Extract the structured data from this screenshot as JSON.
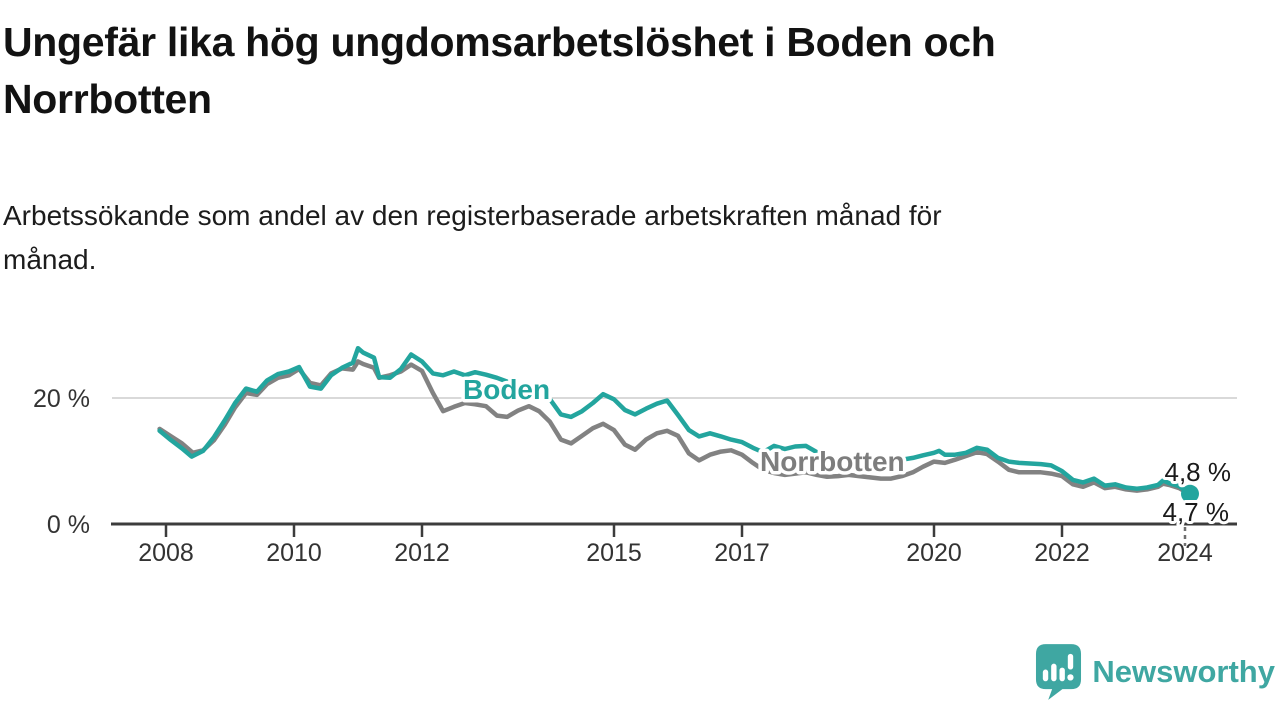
{
  "header": {
    "title": "Ungefär lika hög ungdomsarbetslöshet i Boden och\nNorrbotten",
    "subtitle": "Arbetssökande som andel av den registerbaserade arbetskraften månad för\nmånad."
  },
  "footer": {
    "brand": "Newsworthy",
    "logo_icon": "newsworthy-chart-bubble-icon",
    "brand_color": "#3fa7a2"
  },
  "chart_data": {
    "type": "line",
    "title": "Ungefär lika hög ungdomsarbetslöshet i Boden och Norrbotten",
    "subtitle": "Arbetssökande som andel av den registerbaserade arbetskraften månad för månad.",
    "unit": "%",
    "grid": "single-horizontal-gridline-at-20",
    "legend_position": "inline-labels-on-lines",
    "x_axis": {
      "range": [
        2007.5,
        2024.75
      ],
      "ticks": [
        {
          "year": 2008,
          "label": "2008"
        },
        {
          "year": 2010,
          "label": "2010"
        },
        {
          "year": 2012,
          "label": "2012"
        },
        {
          "year": 2015,
          "label": "2015"
        },
        {
          "year": 2017,
          "label": "2017"
        },
        {
          "year": 2020,
          "label": "2020"
        },
        {
          "year": 2022,
          "label": "2022"
        },
        {
          "year": 2024,
          "label": "2024",
          "dashed": true
        }
      ]
    },
    "y_axis": {
      "ylim": [
        0,
        30
      ],
      "ticks": [
        {
          "value": 20,
          "label": "20 %"
        },
        {
          "value": 0,
          "label": "0 %"
        }
      ]
    },
    "colors": {
      "boden": "#23a59e",
      "norrbotten": "#828282",
      "gridline": "#d9d9d9",
      "axis": "#3c3c3c",
      "tick_text": "#333333",
      "value_label_text": "#1a1a1a"
    },
    "series": [
      {
        "name": "Norrbotten",
        "color": "#828282",
        "end_value": 4.7,
        "end_label": "4,7 %",
        "points": [
          [
            2007.9,
            15.1
          ],
          [
            2008.08,
            13.9
          ],
          [
            2008.25,
            12.8
          ],
          [
            2008.42,
            11.3
          ],
          [
            2008.58,
            11.7
          ],
          [
            2008.75,
            13.3
          ],
          [
            2008.92,
            15.8
          ],
          [
            2009.08,
            18.5
          ],
          [
            2009.25,
            20.8
          ],
          [
            2009.42,
            20.5
          ],
          [
            2009.58,
            22.2
          ],
          [
            2009.75,
            23.2
          ],
          [
            2009.92,
            23.6
          ],
          [
            2010.08,
            24.6
          ],
          [
            2010.25,
            22.4
          ],
          [
            2010.42,
            22.0
          ],
          [
            2010.58,
            23.9
          ],
          [
            2010.75,
            24.7
          ],
          [
            2010.92,
            24.5
          ],
          [
            2011.0,
            25.8
          ],
          [
            2011.08,
            25.4
          ],
          [
            2011.25,
            24.8
          ],
          [
            2011.33,
            23.2
          ],
          [
            2011.5,
            23.6
          ],
          [
            2011.67,
            24.2
          ],
          [
            2011.83,
            25.3
          ],
          [
            2012.0,
            24.3
          ],
          [
            2012.17,
            20.8
          ],
          [
            2012.33,
            17.9
          ],
          [
            2012.5,
            18.6
          ],
          [
            2012.67,
            19.2
          ],
          [
            2012.83,
            19.0
          ],
          [
            2013.0,
            18.7
          ],
          [
            2013.17,
            17.2
          ],
          [
            2013.33,
            17.0
          ],
          [
            2013.5,
            18.0
          ],
          [
            2013.67,
            18.7
          ],
          [
            2013.83,
            17.9
          ],
          [
            2014.0,
            16.2
          ],
          [
            2014.17,
            13.4
          ],
          [
            2014.33,
            12.8
          ],
          [
            2014.5,
            14.0
          ],
          [
            2014.67,
            15.2
          ],
          [
            2014.83,
            15.9
          ],
          [
            2015.0,
            14.9
          ],
          [
            2015.17,
            12.6
          ],
          [
            2015.33,
            11.8
          ],
          [
            2015.5,
            13.4
          ],
          [
            2015.67,
            14.4
          ],
          [
            2015.83,
            14.8
          ],
          [
            2016.0,
            14.0
          ],
          [
            2016.17,
            11.2
          ],
          [
            2016.33,
            10.1
          ],
          [
            2016.5,
            11.0
          ],
          [
            2016.67,
            11.5
          ],
          [
            2016.83,
            11.7
          ],
          [
            2017.0,
            11.0
          ],
          [
            2017.17,
            9.7
          ],
          [
            2017.33,
            8.6
          ],
          [
            2017.5,
            8.1
          ],
          [
            2017.67,
            7.8
          ],
          [
            2017.83,
            8.0
          ],
          [
            2018.0,
            8.2
          ],
          [
            2018.17,
            7.8
          ],
          [
            2018.33,
            7.5
          ],
          [
            2018.5,
            7.6
          ],
          [
            2018.67,
            7.8
          ],
          [
            2018.83,
            7.6
          ],
          [
            2019.0,
            7.4
          ],
          [
            2019.17,
            7.2
          ],
          [
            2019.33,
            7.2
          ],
          [
            2019.5,
            7.6
          ],
          [
            2019.67,
            8.2
          ],
          [
            2019.83,
            9.1
          ],
          [
            2020.0,
            9.9
          ],
          [
            2020.17,
            9.7
          ],
          [
            2020.33,
            10.2
          ],
          [
            2020.5,
            10.8
          ],
          [
            2020.67,
            11.4
          ],
          [
            2020.83,
            11.1
          ],
          [
            2021.0,
            9.9
          ],
          [
            2021.17,
            8.6
          ],
          [
            2021.33,
            8.2
          ],
          [
            2021.5,
            8.2
          ],
          [
            2021.67,
            8.2
          ],
          [
            2021.83,
            8.0
          ],
          [
            2022.0,
            7.6
          ],
          [
            2022.17,
            6.3
          ],
          [
            2022.33,
            5.9
          ],
          [
            2022.5,
            6.6
          ],
          [
            2022.67,
            5.7
          ],
          [
            2022.83,
            5.9
          ],
          [
            2023.0,
            5.5
          ],
          [
            2023.17,
            5.3
          ],
          [
            2023.33,
            5.5
          ],
          [
            2023.5,
            5.9
          ],
          [
            2023.58,
            6.4
          ],
          [
            2023.67,
            6.2
          ],
          [
            2023.83,
            5.7
          ],
          [
            2024.0,
            4.7
          ]
        ]
      },
      {
        "name": "Boden",
        "color": "#23a59e",
        "end_value": 4.8,
        "end_label": "4,8 %",
        "end_dot": true,
        "points": [
          [
            2007.9,
            14.8
          ],
          [
            2008.08,
            13.3
          ],
          [
            2008.25,
            12.0
          ],
          [
            2008.4,
            10.7
          ],
          [
            2008.58,
            11.6
          ],
          [
            2008.75,
            13.8
          ],
          [
            2008.92,
            16.5
          ],
          [
            2009.08,
            19.2
          ],
          [
            2009.25,
            21.5
          ],
          [
            2009.42,
            21.0
          ],
          [
            2009.58,
            22.8
          ],
          [
            2009.75,
            23.8
          ],
          [
            2009.92,
            24.2
          ],
          [
            2010.08,
            24.9
          ],
          [
            2010.25,
            21.8
          ],
          [
            2010.42,
            21.5
          ],
          [
            2010.58,
            23.6
          ],
          [
            2010.75,
            24.8
          ],
          [
            2010.92,
            25.6
          ],
          [
            2011.0,
            27.9
          ],
          [
            2011.08,
            27.2
          ],
          [
            2011.25,
            26.4
          ],
          [
            2011.33,
            23.3
          ],
          [
            2011.5,
            23.2
          ],
          [
            2011.67,
            24.6
          ],
          [
            2011.83,
            26.9
          ],
          [
            2012.0,
            25.8
          ],
          [
            2012.17,
            23.9
          ],
          [
            2012.33,
            23.6
          ],
          [
            2012.5,
            24.2
          ],
          [
            2012.67,
            23.6
          ],
          [
            2012.83,
            24.1
          ],
          [
            2013.0,
            23.7
          ],
          [
            2013.17,
            23.2
          ],
          [
            2013.33,
            22.6
          ],
          [
            2013.5,
            21.8
          ],
          [
            2013.67,
            21.0
          ],
          [
            2013.83,
            20.4
          ],
          [
            2014.0,
            19.8
          ],
          [
            2014.17,
            17.4
          ],
          [
            2014.33,
            17.0
          ],
          [
            2014.5,
            17.9
          ],
          [
            2014.67,
            19.2
          ],
          [
            2014.83,
            20.6
          ],
          [
            2015.0,
            19.8
          ],
          [
            2015.17,
            18.1
          ],
          [
            2015.33,
            17.4
          ],
          [
            2015.5,
            18.3
          ],
          [
            2015.67,
            19.1
          ],
          [
            2015.83,
            19.6
          ],
          [
            2016.0,
            17.3
          ],
          [
            2016.17,
            14.9
          ],
          [
            2016.33,
            13.9
          ],
          [
            2016.5,
            14.4
          ],
          [
            2016.67,
            13.9
          ],
          [
            2016.83,
            13.4
          ],
          [
            2017.0,
            13.0
          ],
          [
            2017.17,
            12.1
          ],
          [
            2017.33,
            11.4
          ],
          [
            2017.5,
            12.4
          ],
          [
            2017.67,
            11.9
          ],
          [
            2017.83,
            12.3
          ],
          [
            2018.0,
            12.4
          ],
          [
            2018.17,
            11.4
          ],
          [
            2018.33,
            10.7
          ],
          [
            2018.5,
            10.3
          ],
          [
            2018.67,
            10.2
          ],
          [
            2018.83,
            10.0
          ],
          [
            2019.0,
            9.9
          ],
          [
            2019.17,
            9.8
          ],
          [
            2019.33,
            10.0
          ],
          [
            2019.5,
            10.2
          ],
          [
            2019.67,
            10.5
          ],
          [
            2019.83,
            10.9
          ],
          [
            2020.0,
            11.3
          ],
          [
            2020.08,
            11.6
          ],
          [
            2020.17,
            11.0
          ],
          [
            2020.33,
            11.0
          ],
          [
            2020.5,
            11.3
          ],
          [
            2020.67,
            12.1
          ],
          [
            2020.83,
            11.8
          ],
          [
            2021.0,
            10.5
          ],
          [
            2021.17,
            9.9
          ],
          [
            2021.33,
            9.7
          ],
          [
            2021.5,
            9.6
          ],
          [
            2021.67,
            9.5
          ],
          [
            2021.83,
            9.3
          ],
          [
            2022.0,
            8.4
          ],
          [
            2022.17,
            7.0
          ],
          [
            2022.33,
            6.6
          ],
          [
            2022.5,
            7.2
          ],
          [
            2022.67,
            6.1
          ],
          [
            2022.83,
            6.3
          ],
          [
            2023.0,
            5.8
          ],
          [
            2023.17,
            5.6
          ],
          [
            2023.33,
            5.8
          ],
          [
            2023.5,
            6.2
          ],
          [
            2023.58,
            6.9
          ],
          [
            2023.67,
            6.5
          ],
          [
            2023.83,
            6.0
          ],
          [
            2024.0,
            4.8
          ]
        ]
      }
    ]
  }
}
